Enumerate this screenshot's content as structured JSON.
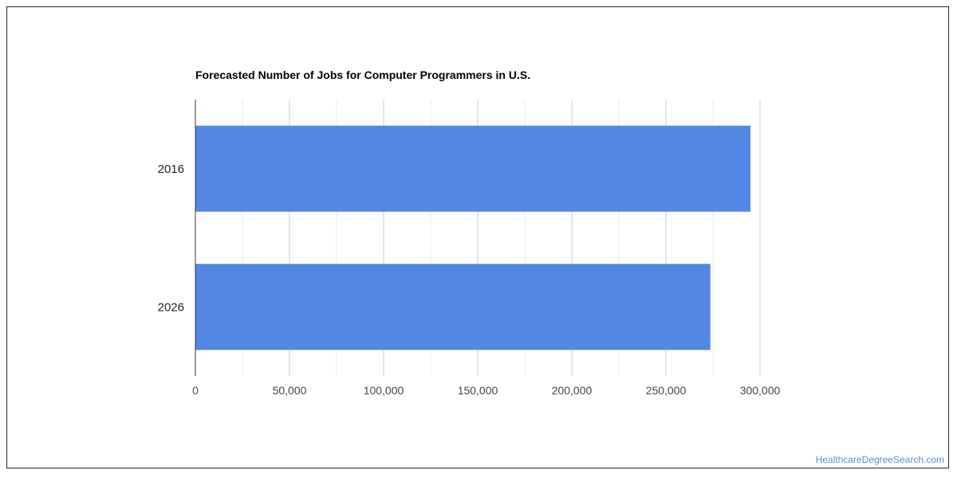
{
  "chart_data": {
    "type": "bar",
    "orientation": "horizontal",
    "title": "Forecasted Number of Jobs for Computer Programmers in U.S.",
    "categories": [
      "2016",
      "2026"
    ],
    "values": [
      294900,
      273600
    ],
    "xlim": [
      0,
      300000
    ],
    "x_ticks": [
      0,
      50000,
      100000,
      150000,
      200000,
      250000,
      300000
    ],
    "x_tick_labels": [
      "0",
      "50,000",
      "100,000",
      "150,000",
      "200,000",
      "250,000",
      "300,000"
    ],
    "grid": true,
    "legend": "none",
    "bar_color": "#5387e3",
    "grid_color": "#cccccc"
  },
  "watermark": "HealthcareDegreeSearch.com"
}
